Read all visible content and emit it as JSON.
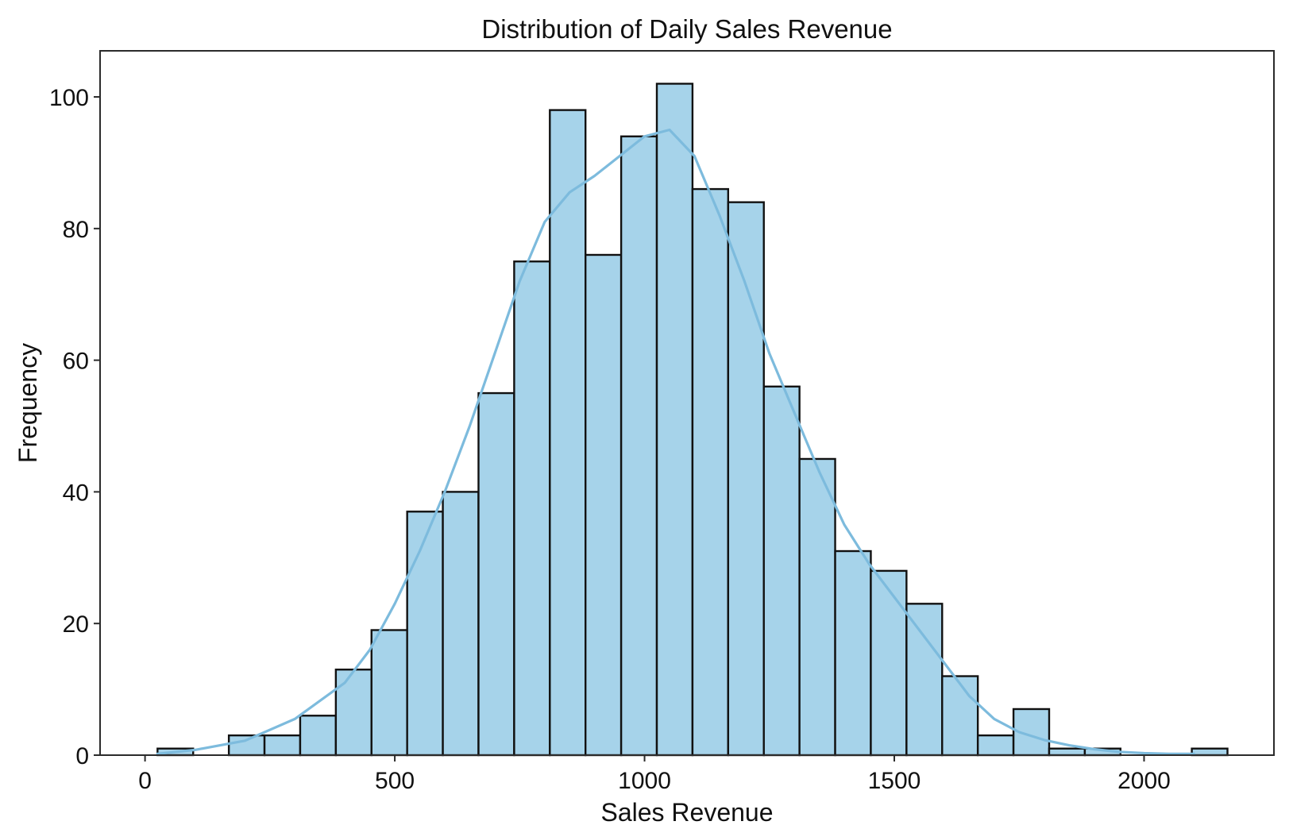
{
  "chart_data": {
    "type": "bar",
    "subtype": "histogram",
    "title": "Distribution of Daily Sales Revenue",
    "xlabel": "Sales Revenue",
    "ylabel": "Frequency",
    "xlim": [
      -90,
      2260
    ],
    "ylim": [
      0,
      107
    ],
    "xticks": [
      0,
      500,
      1000,
      1500,
      2000
    ],
    "yticks": [
      0,
      20,
      40,
      60,
      80,
      100
    ],
    "grid": false,
    "bar_color": "#a6d3ea",
    "edge_color": "#111111",
    "kde_color": "#7dbbdd",
    "bin_start": 25,
    "bin_width": 71.4,
    "counts": [
      1,
      0,
      3,
      3,
      6,
      13,
      19,
      37,
      40,
      55,
      75,
      98,
      76,
      94,
      102,
      86,
      84,
      56,
      45,
      31,
      28,
      23,
      12,
      3,
      7,
      1,
      1,
      0,
      0,
      1
    ],
    "kde": {
      "x": [
        25,
        100,
        200,
        300,
        400,
        450,
        500,
        550,
        600,
        650,
        700,
        750,
        800,
        850,
        900,
        950,
        1000,
        1050,
        1100,
        1150,
        1200,
        1250,
        1300,
        1350,
        1400,
        1450,
        1500,
        1550,
        1600,
        1650,
        1700,
        1750,
        1800,
        1850,
        1900,
        1950,
        2000,
        2050,
        2100
      ],
      "y": [
        0.2,
        0.8,
        2.2,
        5.5,
        11,
        16,
        23,
        31,
        40,
        50,
        61,
        72,
        81,
        85.5,
        88,
        91,
        94,
        95,
        91,
        82,
        72,
        61,
        52,
        43,
        35,
        29,
        24,
        19,
        14,
        9,
        5.5,
        3.5,
        2.3,
        1.5,
        0.9,
        0.5,
        0.3,
        0.2,
        0.2
      ]
    }
  }
}
